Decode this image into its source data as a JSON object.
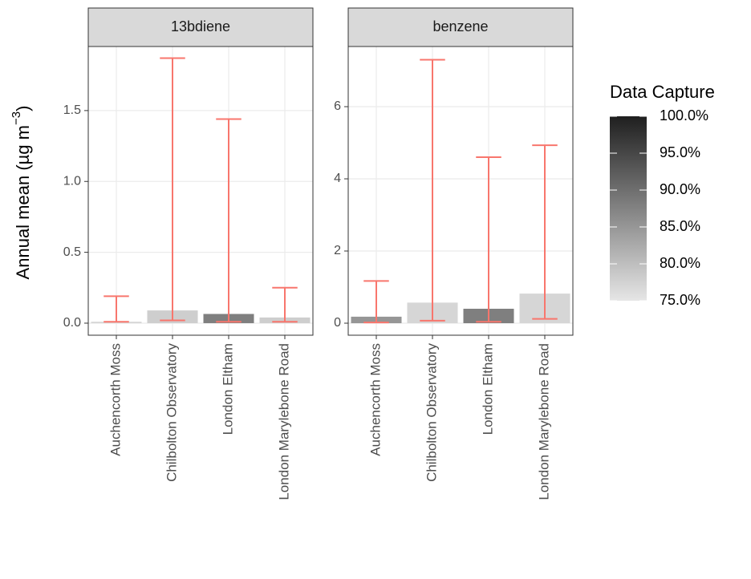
{
  "chart_data": {
    "type": "bar",
    "ylabel": {
      "text": "Annual mean (µg m",
      "superscript": "−3",
      "suffix": ")"
    },
    "error_color": "#f8766d",
    "grid": true,
    "legend": {
      "title": "Data Capture",
      "position": "right",
      "colors": [
        "#e6e6e6",
        "#1f1f1f"
      ],
      "lim": [
        75,
        100
      ],
      "ticks": [
        {
          "value": 75,
          "label": "75.0%"
        },
        {
          "value": 80,
          "label": "80.0%"
        },
        {
          "value": 85,
          "label": "85.0%"
        },
        {
          "value": 90,
          "label": "90.0%"
        },
        {
          "value": 95,
          "label": "95.0%"
        },
        {
          "value": 100,
          "label": "100.0%"
        }
      ]
    },
    "facets": [
      {
        "title": "13bdiene",
        "categories": [
          "Auchencorth Moss",
          "Chilbolton Observatory",
          "London Eltham",
          "London Marylebone Road"
        ],
        "values": [
          0.01,
          0.09,
          0.065,
          0.04
        ],
        "lower": [
          0.01,
          0.02,
          0.01,
          0.01
        ],
        "upper": [
          0.19,
          1.87,
          1.44,
          0.25
        ],
        "capture": [
          77,
          78,
          88,
          78
        ],
        "ylim": [
          -0.085,
          1.952
        ],
        "yticks": [
          {
            "value": 0,
            "label": "0.0"
          },
          0.5,
          {
            "value": 1,
            "label": "1.0"
          },
          1.5
        ]
      },
      {
        "title": "benzene",
        "categories": [
          "Auchencorth Moss",
          "Chilbolton Observatory",
          "London Eltham",
          "London Marylebone Road"
        ],
        "values": [
          0.18,
          0.57,
          0.4,
          0.82
        ],
        "lower": [
          0.02,
          0.07,
          0.04,
          0.12
        ],
        "upper": [
          1.17,
          7.3,
          4.6,
          4.93
        ],
        "capture": [
          85,
          77,
          88,
          77
        ],
        "ylim": [
          -0.333,
          7.667
        ],
        "yticks": [
          0,
          2,
          4,
          6
        ]
      }
    ]
  }
}
